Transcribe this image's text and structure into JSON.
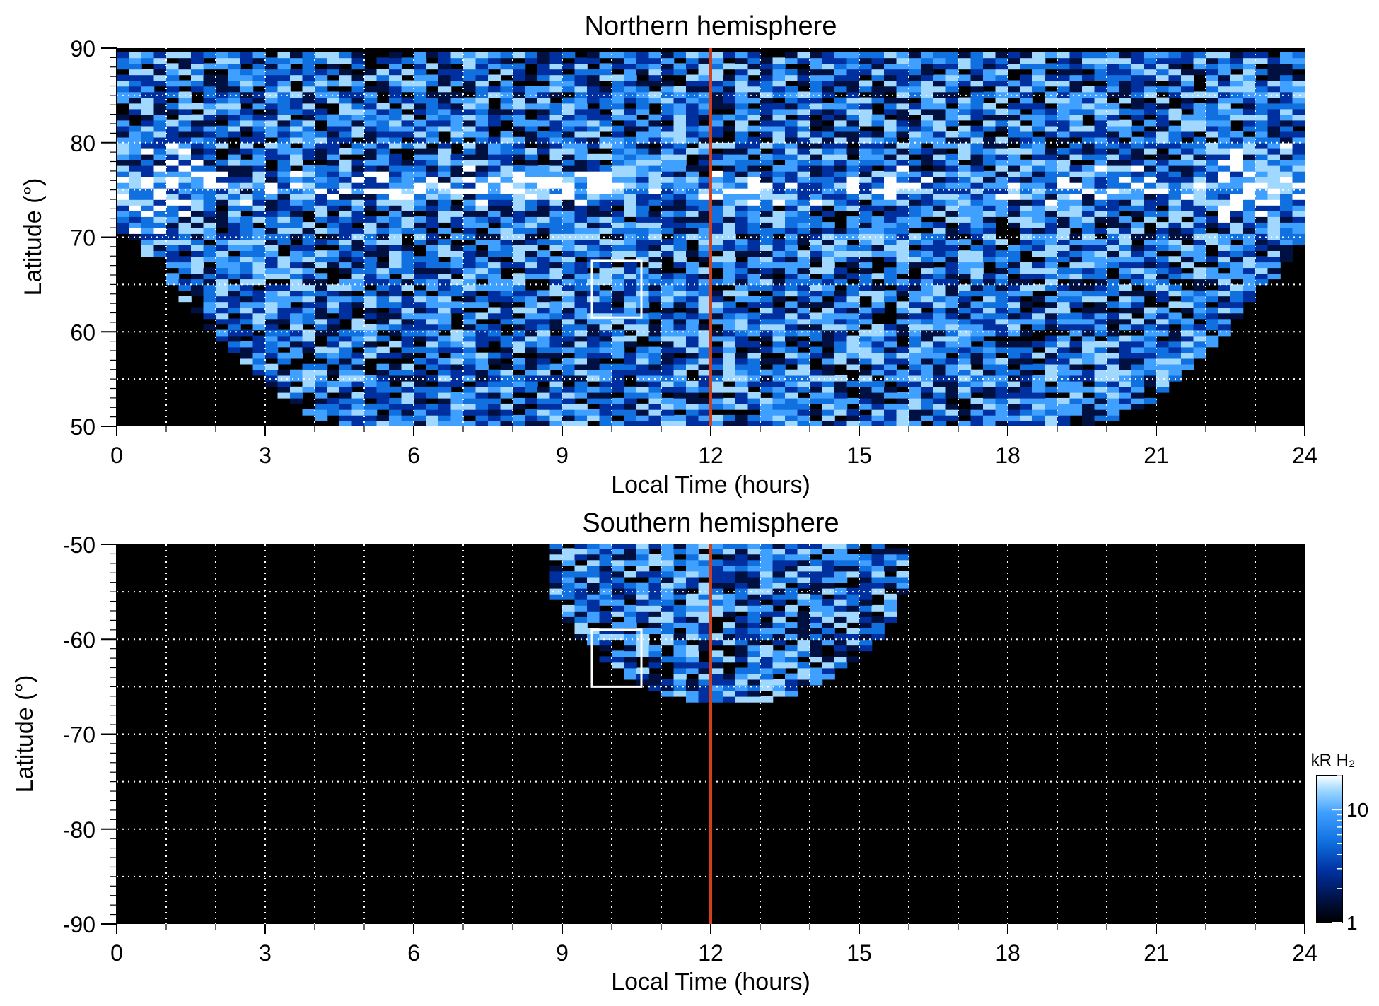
{
  "chart_data": [
    {
      "type": "heatmap",
      "title": "Northern hemisphere",
      "xlabel": "Local Time (hours)",
      "ylabel": "Latitude (°)",
      "xlim": [
        0,
        24
      ],
      "ylim": [
        50,
        90
      ],
      "xticks": [
        "0",
        "3",
        "6",
        "9",
        "12",
        "15",
        "18",
        "21",
        "24"
      ],
      "yticks": [
        "50",
        "60",
        "70",
        "80",
        "90"
      ],
      "grid": true,
      "reference_line": {
        "local_time": 12,
        "color": "#d0401c"
      },
      "highlight_box": {
        "lt_range": [
          9.6,
          10.6
        ],
        "lat_range": [
          61.5,
          67.5
        ]
      },
      "coverage": {
        "lt_at_lat50": [
          4.3,
          19.9
        ],
        "lt_at_lat70": [
          0.2,
          23.9
        ],
        "lat_top_edge": 89
      },
      "auroral_oval": {
        "lat_center": 75,
        "intensity_kR": 20,
        "brightest_lt_range": [
          7.5,
          10
        ]
      }
    },
    {
      "type": "heatmap",
      "title": "Southern hemisphere",
      "xlabel": "Local Time (hours)",
      "ylabel": "Latitude (°)",
      "xlim": [
        0,
        24
      ],
      "ylim": [
        -90,
        -50
      ],
      "xticks": [
        "0",
        "3",
        "6",
        "9",
        "12",
        "15",
        "18",
        "21",
        "24"
      ],
      "yticks": [
        "-50",
        "-60",
        "-70",
        "-80",
        "-90"
      ],
      "grid": true,
      "reference_line": {
        "local_time": 12,
        "color": "#d0401c"
      },
      "highlight_box": {
        "lt_range": [
          9.6,
          10.6
        ],
        "lat_range": [
          -65,
          -59
        ]
      },
      "coverage": {
        "lt_at_lat50": [
          8.5,
          16.0
        ],
        "min_lat": -67,
        "min_lat_lt": 12.5
      }
    }
  ],
  "colorbar": {
    "label": "kR H₂",
    "ticks": [
      "1",
      "10"
    ],
    "range": [
      1,
      20
    ],
    "scale": "log",
    "colors": [
      "#000000",
      "#001040",
      "#0030a0",
      "#1070e0",
      "#40a0ff",
      "#a0d8ff",
      "#ffffff"
    ]
  }
}
